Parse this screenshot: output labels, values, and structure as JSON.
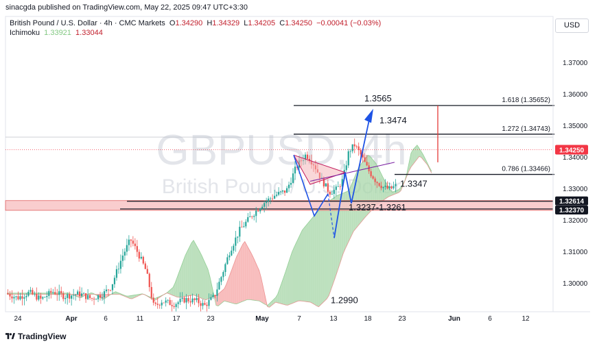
{
  "header": {
    "published": "sinacgda published on TradingView.com, May 22, 2025 09:47 UTC+3:30",
    "symbol_desc": "British Pound / U.S. Dollar · 4h · CMC Markets",
    "o_label": "O",
    "o_value": "1.34290",
    "h_label": "H",
    "h_value": "1.34329",
    "l_label": "L",
    "l_value": "1.34205",
    "c_label": "C",
    "c_value": "1.34250",
    "change": "−0.00041 (−0.03%)",
    "indicator_name": "Ichimoku",
    "ichimoku_a": "1.33921",
    "ichimoku_b": "1.33044",
    "currency": "USD"
  },
  "watermark": {
    "symbol": "GBPUSD, 4h",
    "desc": "British Pound / U.S. Dollar"
  },
  "footer": {
    "brand": "TradingView"
  },
  "colors": {
    "up": "#26a69a",
    "down": "#ef5350",
    "cloud_green": "#a5d6a7",
    "cloud_red": "#f5a5a5",
    "zone": "#f8c4c6",
    "arrow": "#1e53e5",
    "price_tag": "#f23645",
    "ma_green": "#81c784"
  },
  "chart_data": {
    "type": "candlestick",
    "ylim": [
      1.2915,
      1.377
    ],
    "yticks": [
      1.3,
      1.31,
      1.32,
      1.33,
      1.34,
      1.35,
      1.36,
      1.37
    ],
    "ytick_labels": [
      "1.30000",
      "1.31000",
      "1.32000",
      "1.33000",
      "1.34000",
      "1.35000",
      "1.36000",
      "1.37000"
    ],
    "xtick_labels": [
      "24",
      "Apr",
      "6",
      "11",
      "17",
      "23",
      "May",
      "7",
      "13",
      "18",
      "23",
      "Jun",
      "6",
      "12"
    ],
    "last_price": 1.3425,
    "last_price_label": "1.34250",
    "price_path": [
      [
        0,
        1.297
      ],
      [
        0.03,
        1.2955
      ],
      [
        0.06,
        1.2972
      ],
      [
        0.09,
        1.295
      ],
      [
        0.12,
        1.2975
      ],
      [
        0.15,
        1.296
      ],
      [
        0.19,
        1.2968
      ],
      [
        0.22,
        1.2952
      ],
      [
        0.25,
        1.2968
      ],
      [
        0.27,
        1.299
      ],
      [
        0.3,
        1.309
      ],
      [
        0.32,
        1.314
      ],
      [
        0.34,
        1.3095
      ],
      [
        0.36,
        1.304
      ],
      [
        0.38,
        1.2925
      ],
      [
        0.4,
        1.2945
      ],
      [
        0.43,
        1.2935
      ],
      [
        0.46,
        1.295
      ],
      [
        0.49,
        1.2945
      ],
      [
        0.51,
        1.293
      ],
      [
        0.535,
        1.296
      ],
      [
        0.555,
        1.303
      ],
      [
        0.575,
        1.3105
      ],
      [
        0.6,
        1.317
      ],
      [
        0.63,
        1.3215
      ],
      [
        0.66,
        1.3255
      ],
      [
        0.69,
        1.328
      ],
      [
        0.72,
        1.3295
      ],
      [
        0.745,
        1.337
      ],
      [
        0.77,
        1.341
      ],
      [
        0.79,
        1.338
      ],
      [
        0.81,
        1.333
      ],
      [
        0.83,
        1.329
      ],
      [
        0.85,
        1.33
      ],
      [
        0.865,
        1.333
      ],
      [
        0.88,
        1.342
      ],
      [
        0.895,
        1.344
      ],
      [
        0.91,
        1.341
      ],
      [
        0.93,
        1.336
      ],
      [
        0.95,
        1.3325
      ],
      [
        0.97,
        1.3305
      ],
      [
        0.985,
        1.33
      ],
      [
        1.0,
        1.331
      ]
    ],
    "fib_levels": [
      {
        "ratio_label": "1.618 (1.35652)",
        "value": 1.35652
      },
      {
        "ratio_label": "1.272 (1.34743)",
        "value": 1.34743
      },
      {
        "ratio_label": "0.786 (1.33466)",
        "value": 1.33466
      }
    ],
    "annotations": [
      {
        "text": "1.3565",
        "value": 1.3565
      },
      {
        "text": "1.3474",
        "value": 1.3474
      },
      {
        "text": "1.3347",
        "value": 1.3347
      },
      {
        "text": "1.3237-1.3261",
        "value": 1.3237
      },
      {
        "text": "1.2990",
        "value": 1.299
      }
    ],
    "support_zone": {
      "top": 1.32614,
      "bottom": 1.3237,
      "top_label": "1.32614",
      "bottom_label": "1.32370"
    }
  }
}
